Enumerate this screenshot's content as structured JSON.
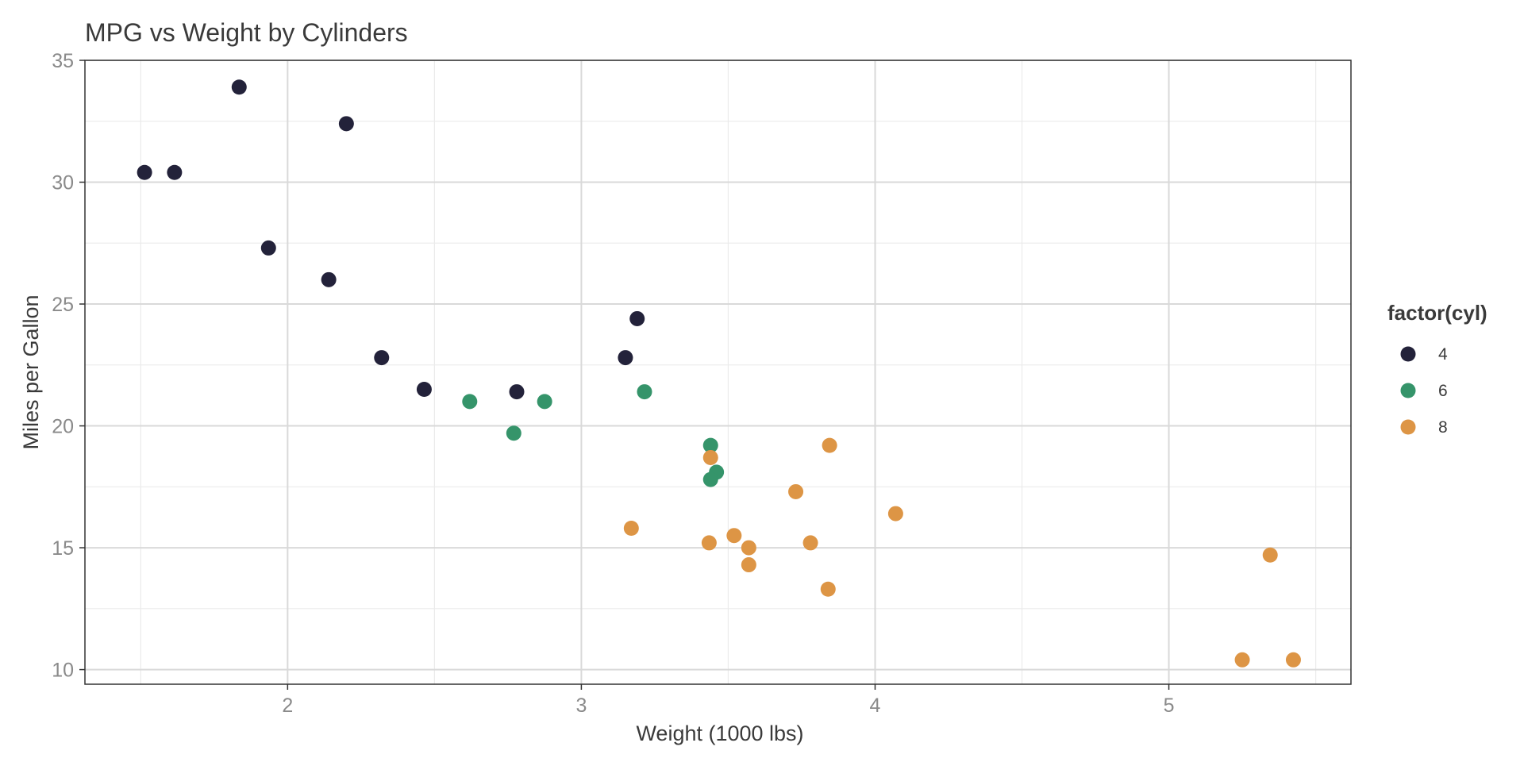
{
  "chart_data": {
    "type": "scatter",
    "title": "MPG vs Weight by Cylinders",
    "xlabel": "Weight (1000 lbs)",
    "ylabel": "Miles per Gallon",
    "xlim": [
      1.31,
      5.62
    ],
    "ylim": [
      9.4,
      35.0
    ],
    "x_ticks": [
      2,
      3,
      4,
      5
    ],
    "y_ticks": [
      10,
      15,
      20,
      25,
      30,
      35
    ],
    "grid": true,
    "legend": {
      "title": "factor(cyl)",
      "position": "right"
    },
    "series": [
      {
        "name": "4",
        "color": "#23223a",
        "points": [
          [
            2.32,
            22.8
          ],
          [
            3.19,
            24.4
          ],
          [
            3.15,
            22.8
          ],
          [
            2.2,
            32.4
          ],
          [
            1.615,
            30.4
          ],
          [
            1.835,
            33.9
          ],
          [
            2.465,
            21.5
          ],
          [
            1.935,
            27.3
          ],
          [
            2.14,
            26.0
          ],
          [
            1.513,
            30.4
          ],
          [
            2.78,
            21.4
          ]
        ]
      },
      {
        "name": "6",
        "color": "#35946a",
        "points": [
          [
            2.62,
            21.0
          ],
          [
            2.875,
            21.0
          ],
          [
            3.215,
            21.4
          ],
          [
            3.46,
            18.1
          ],
          [
            3.44,
            19.2
          ],
          [
            3.44,
            17.8
          ],
          [
            2.77,
            19.7
          ]
        ]
      },
      {
        "name": "8",
        "color": "#dd9545",
        "points": [
          [
            3.44,
            18.7
          ],
          [
            3.57,
            14.3
          ],
          [
            4.07,
            16.4
          ],
          [
            3.73,
            17.3
          ],
          [
            3.78,
            15.2
          ],
          [
            5.25,
            10.4
          ],
          [
            5.424,
            10.4
          ],
          [
            5.345,
            14.7
          ],
          [
            3.52,
            15.5
          ],
          [
            3.435,
            15.2
          ],
          [
            3.84,
            13.3
          ],
          [
            3.845,
            19.2
          ],
          [
            3.17,
            15.8
          ],
          [
            3.57,
            15.0
          ]
        ]
      }
    ]
  }
}
